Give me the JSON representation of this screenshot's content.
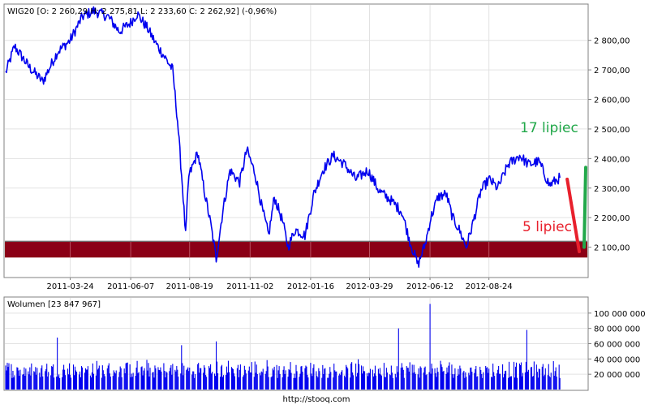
{
  "chart_data": [
    {
      "type": "line",
      "title": "WIG20 [O: 2 260,29  H: 2 275,81  L: 2 233,60  C: 2 262,92] (-0,96%)",
      "series_color": "#0000ee",
      "ylim": [
        2000,
        2920
      ],
      "y_ticks": [
        {
          "value": 2100,
          "label": "2 100,00"
        },
        {
          "value": 2200,
          "label": "2 200,00"
        },
        {
          "value": 2300,
          "label": "2 300,00"
        },
        {
          "value": 2400,
          "label": "2 400,00"
        },
        {
          "value": 2500,
          "label": "2 500,00"
        },
        {
          "value": 2600,
          "label": "2 600,00"
        },
        {
          "value": 2700,
          "label": "2 700,00"
        },
        {
          "value": 2800,
          "label": "2 800,00"
        }
      ],
      "x_range": [
        "2011-01-02",
        "2012-12-24"
      ],
      "x_ticks": [
        "2011-03-24",
        "2011-06-07",
        "2011-08-19",
        "2011-11-02",
        "2012-01-16",
        "2012-03-29",
        "2012-06-12",
        "2012-08-24"
      ],
      "grid": true,
      "key_points": [
        {
          "x": "2011-01-03",
          "y": 2690
        },
        {
          "x": "2011-01-14",
          "y": 2780
        },
        {
          "x": "2011-02-01",
          "y": 2710
        },
        {
          "x": "2011-02-18",
          "y": 2660
        },
        {
          "x": "2011-03-08",
          "y": 2760
        },
        {
          "x": "2011-03-24",
          "y": 2800
        },
        {
          "x": "2011-04-08",
          "y": 2880
        },
        {
          "x": "2011-04-22",
          "y": 2900
        },
        {
          "x": "2011-05-10",
          "y": 2880
        },
        {
          "x": "2011-05-24",
          "y": 2830
        },
        {
          "x": "2011-06-07",
          "y": 2860
        },
        {
          "x": "2011-06-15",
          "y": 2890
        },
        {
          "x": "2011-06-28",
          "y": 2840
        },
        {
          "x": "2011-07-08",
          "y": 2790
        },
        {
          "x": "2011-07-20",
          "y": 2740
        },
        {
          "x": "2011-07-29",
          "y": 2700
        },
        {
          "x": "2011-08-04",
          "y": 2530
        },
        {
          "x": "2011-08-10",
          "y": 2310
        },
        {
          "x": "2011-08-14",
          "y": 2140
        },
        {
          "x": "2011-08-18",
          "y": 2340
        },
        {
          "x": "2011-08-29",
          "y": 2420
        },
        {
          "x": "2011-09-07",
          "y": 2280
        },
        {
          "x": "2011-09-14",
          "y": 2180
        },
        {
          "x": "2011-09-21",
          "y": 2060
        },
        {
          "x": "2011-09-29",
          "y": 2220
        },
        {
          "x": "2011-10-08",
          "y": 2360
        },
        {
          "x": "2011-10-20",
          "y": 2320
        },
        {
          "x": "2011-10-29",
          "y": 2430
        },
        {
          "x": "2011-11-08",
          "y": 2350
        },
        {
          "x": "2011-11-17",
          "y": 2230
        },
        {
          "x": "2011-11-25",
          "y": 2140
        },
        {
          "x": "2011-12-02",
          "y": 2270
        },
        {
          "x": "2011-12-12",
          "y": 2190
        },
        {
          "x": "2011-12-19",
          "y": 2100
        },
        {
          "x": "2011-12-28",
          "y": 2160
        },
        {
          "x": "2012-01-09",
          "y": 2140
        },
        {
          "x": "2012-01-20",
          "y": 2280
        },
        {
          "x": "2012-01-31",
          "y": 2360
        },
        {
          "x": "2012-02-13",
          "y": 2410
        },
        {
          "x": "2012-02-27",
          "y": 2380
        },
        {
          "x": "2012-03-12",
          "y": 2330
        },
        {
          "x": "2012-03-27",
          "y": 2360
        },
        {
          "x": "2012-04-10",
          "y": 2290
        },
        {
          "x": "2012-04-24",
          "y": 2260
        },
        {
          "x": "2012-05-08",
          "y": 2220
        },
        {
          "x": "2012-05-18",
          "y": 2120
        },
        {
          "x": "2012-05-28",
          "y": 2040
        },
        {
          "x": "2012-06-06",
          "y": 2110
        },
        {
          "x": "2012-06-13",
          "y": 2200
        },
        {
          "x": "2012-06-22",
          "y": 2270
        },
        {
          "x": "2012-07-02",
          "y": 2280
        },
        {
          "x": "2012-07-10",
          "y": 2200
        },
        {
          "x": "2012-07-18",
          "y": 2160
        },
        {
          "x": "2012-07-27",
          "y": 2100
        },
        {
          "x": "2012-08-04",
          "y": 2180
        },
        {
          "x": "2012-08-14",
          "y": 2290
        },
        {
          "x": "2012-08-24",
          "y": 2330
        },
        {
          "x": "2012-09-04",
          "y": 2300
        },
        {
          "x": "2012-09-17",
          "y": 2380
        },
        {
          "x": "2012-10-01",
          "y": 2410
        },
        {
          "x": "2012-10-12",
          "y": 2380
        },
        {
          "x": "2012-10-25",
          "y": 2390
        },
        {
          "x": "2012-11-07",
          "y": 2310
        },
        {
          "x": "2012-11-20",
          "y": 2335
        }
      ],
      "support_band": {
        "from": 2065,
        "to": 2118,
        "color": "#8b0016"
      },
      "support_line": 2120,
      "annotations": [
        {
          "text": "17 lipiec",
          "color": "#22a84a",
          "arrow_from": {
            "x": "2012-12-20",
            "y": 2100
          },
          "arrow_to": {
            "x": "2012-12-22",
            "y": 2370
          }
        },
        {
          "text": "5 lipiec",
          "color": "#e8202c",
          "arrow_from": {
            "x": "2012-11-29",
            "y": 2330
          },
          "arrow_to": {
            "x": "2012-12-14",
            "y": 2085
          }
        }
      ]
    },
    {
      "type": "bar",
      "title": "Wolumen [23 847 967]",
      "series_color": "#0000ee",
      "ylim": [
        0,
        120000000
      ],
      "y_ticks": [
        {
          "value": 20000000,
          "label": "20 000 000"
        },
        {
          "value": 40000000,
          "label": "40 000 000"
        },
        {
          "value": 60000000,
          "label": "60 000 000"
        },
        {
          "value": 80000000,
          "label": "80 000 000"
        },
        {
          "value": 100000000,
          "label": "100 000 000"
        }
      ],
      "typical_range": [
        15000000,
        40000000
      ],
      "notable_values": [
        {
          "x": "2011-03-08",
          "value": 68000000
        },
        {
          "x": "2011-08-09",
          "value": 58000000
        },
        {
          "x": "2011-09-21",
          "value": 63000000
        },
        {
          "x": "2012-05-04",
          "value": 80000000
        },
        {
          "x": "2012-06-12",
          "value": 112000000
        },
        {
          "x": "2012-10-10",
          "value": 78000000
        }
      ]
    }
  ],
  "footer": {
    "url": "http://stooq.com"
  }
}
